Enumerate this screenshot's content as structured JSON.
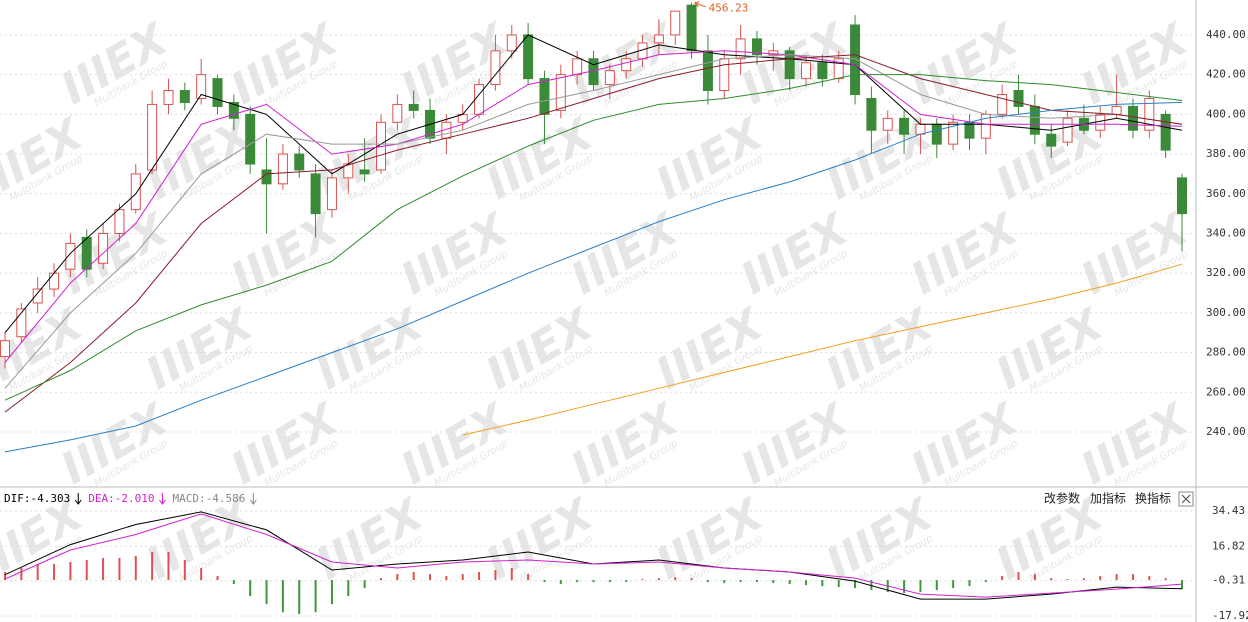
{
  "chart_data": [
    {
      "type": "candlestick",
      "yticks": [
        {
          "value": 440,
          "label": "440.00"
        },
        {
          "value": 420,
          "label": "420.00"
        },
        {
          "value": 400,
          "label": "400.00"
        },
        {
          "value": 380,
          "label": "380.00"
        },
        {
          "value": 360,
          "label": "360.00"
        },
        {
          "value": 340,
          "label": "340.00"
        },
        {
          "value": 320,
          "label": "320.00"
        },
        {
          "value": 300,
          "label": "300.00"
        },
        {
          "value": 280,
          "label": "280.00"
        },
        {
          "value": 260,
          "label": "260.00"
        },
        {
          "value": 240,
          "label": "240.00"
        }
      ],
      "ylim": [
        212.8,
        457.6
      ],
      "grid": true,
      "up_color": "#d9534f",
      "down_color": "#3a8a3a",
      "annotation": "456.23",
      "annotation_color": "#e06020",
      "open": [
        278,
        288,
        305,
        312,
        322,
        338,
        325,
        340,
        352,
        372,
        405,
        412,
        408,
        418,
        406,
        400,
        372,
        365,
        380,
        370,
        352,
        368,
        372,
        372,
        396,
        405,
        402,
        388,
        396,
        400,
        415,
        432,
        440,
        418,
        402,
        420,
        428,
        415,
        422,
        428,
        436,
        440,
        455,
        432,
        412,
        428,
        438,
        430,
        432,
        418,
        426,
        418,
        445,
        408,
        392,
        398,
        390,
        395,
        385,
        396,
        388,
        400,
        412,
        404,
        390,
        386,
        398,
        392,
        400,
        404,
        392,
        400,
        368
      ],
      "high": [
        290,
        305,
        318,
        325,
        340,
        342,
        345,
        355,
        375,
        412,
        418,
        416,
        428,
        420,
        410,
        404,
        388,
        385,
        384,
        375,
        372,
        380,
        388,
        400,
        410,
        412,
        408,
        400,
        405,
        418,
        440,
        445,
        446,
        422,
        425,
        432,
        432,
        425,
        432,
        440,
        448,
        452,
        456.23,
        440,
        432,
        445,
        442,
        436,
        434,
        430,
        430,
        432,
        450,
        414,
        402,
        402,
        398,
        398,
        400,
        400,
        402,
        415,
        420,
        410,
        395,
        402,
        405,
        404,
        420,
        408,
        412,
        402,
        370
      ],
      "low": [
        272,
        285,
        300,
        308,
        318,
        318,
        322,
        336,
        350,
        370,
        400,
        402,
        405,
        400,
        392,
        370,
        340,
        362,
        368,
        338,
        348,
        360,
        366,
        370,
        392,
        398,
        385,
        380,
        392,
        398,
        412,
        428,
        415,
        385,
        398,
        415,
        412,
        408,
        418,
        424,
        430,
        435,
        428,
        405,
        408,
        420,
        425,
        422,
        412,
        414,
        414,
        416,
        405,
        380,
        385,
        380,
        380,
        378,
        382,
        382,
        380,
        398,
        400,
        385,
        378,
        384,
        390,
        388,
        398,
        388,
        388,
        378,
        331
      ],
      "close": [
        286,
        302,
        312,
        320,
        335,
        322,
        340,
        352,
        370,
        405,
        412,
        406,
        420,
        404,
        398,
        375,
        365,
        380,
        372,
        350,
        368,
        375,
        370,
        396,
        405,
        402,
        388,
        396,
        400,
        415,
        432,
        440,
        418,
        400,
        420,
        428,
        415,
        422,
        428,
        436,
        440,
        452,
        432,
        412,
        428,
        438,
        430,
        432,
        418,
        426,
        418,
        428,
        410,
        392,
        398,
        390,
        395,
        385,
        396,
        388,
        400,
        410,
        404,
        390,
        384,
        398,
        392,
        400,
        404,
        392,
        408,
        382,
        350
      ],
      "ma_x": [
        0,
        4,
        8,
        12,
        16,
        20,
        24,
        28,
        32,
        36,
        40,
        44,
        48,
        52,
        56,
        60,
        64,
        68,
        72
      ],
      "ma": [
        {
          "color": "#000000",
          "values": [
            290,
            330,
            360,
            410,
            400,
            370,
            390,
            400,
            440,
            425,
            435,
            430,
            428,
            425,
            395,
            395,
            392,
            398,
            392
          ]
        },
        {
          "color": "#d020d0",
          "values": [
            275,
            315,
            345,
            395,
            405,
            380,
            385,
            395,
            415,
            422,
            430,
            432,
            430,
            425,
            400,
            395,
            395,
            395,
            394
          ]
        },
        {
          "color": "#999999",
          "values": [
            262,
            300,
            330,
            370,
            390,
            385,
            385,
            392,
            405,
            412,
            420,
            428,
            430,
            428,
            410,
            400,
            398,
            400,
            395
          ]
        },
        {
          "color": "#8b1a2a",
          "values": [
            250,
            275,
            305,
            345,
            370,
            372,
            382,
            390,
            398,
            408,
            418,
            425,
            428,
            430,
            418,
            410,
            402,
            400,
            395
          ]
        },
        {
          "color": "#2e8b2e",
          "values": [
            256,
            271,
            291,
            304,
            314,
            326,
            352,
            369,
            384,
            397,
            405,
            408,
            413,
            420,
            420,
            417,
            415,
            411,
            407
          ]
        },
        {
          "color": "#2a7fc8",
          "values": [
            230,
            236,
            243,
            256,
            268,
            280,
            292,
            306,
            320,
            333,
            346,
            357,
            366,
            377,
            390,
            398,
            402,
            405,
            406
          ]
        },
        {
          "color": "#f0a020",
          "values": [
            null,
            null,
            null,
            null,
            null,
            null,
            null,
            238.5,
            246,
            254,
            262,
            270,
            278,
            286,
            293,
            300,
            307,
            315,
            324.5
          ]
        }
      ]
    },
    {
      "type": "macd",
      "yticks": [
        34.43,
        16.82,
        -0.31,
        -17.92
      ],
      "ylim": [
        -20.9,
        44.9
      ],
      "grid": true,
      "buttons": [
        "改参数",
        "加指标",
        "换指标"
      ],
      "series": [
        {
          "name": "DIF:-4.303",
          "color": "#000000",
          "values": [
            2.7,
            17.7,
            27.7,
            34,
            25,
            5,
            8,
            10,
            14,
            8,
            10,
            6,
            4,
            -0.5,
            -9.5,
            -9.5,
            -7,
            -3.5,
            -4.303
          ]
        },
        {
          "name": "DEA:-2.010",
          "color": "#d020d0",
          "values": [
            0.5,
            15,
            22.7,
            33,
            22.7,
            9,
            6,
            9,
            10,
            8,
            9,
            6,
            4,
            1,
            -7,
            -8.5,
            -6.5,
            -4.5,
            -2.01
          ]
        }
      ],
      "bars": {
        "name": "MACD:-4.586",
        "color": "#888888",
        "up_color": "#e05050",
        "down_color": "#3a9a3a",
        "values": [
          4,
          6,
          8,
          8,
          9,
          10,
          11,
          11,
          12,
          14,
          14,
          10,
          6,
          2,
          -2,
          -8,
          -12,
          -16,
          -17,
          -16,
          -12,
          -8,
          -4,
          1,
          3,
          4,
          3,
          2,
          3,
          4,
          5,
          6,
          3,
          -1,
          -2,
          -1,
          -1,
          -1,
          -1,
          0.5,
          1,
          1.5,
          1,
          -1,
          -1.5,
          -1,
          -1,
          -1.5,
          -2,
          -2.5,
          -3,
          -3.5,
          -4,
          -5,
          -6,
          -6.5,
          -6,
          -5,
          -4,
          -3,
          -1,
          2,
          4,
          3,
          1,
          0.5,
          1,
          2,
          3,
          3,
          2,
          1,
          -4.586
        ]
      }
    }
  ],
  "watermark": {
    "mark": "IIIEX",
    "sub": "Multibank Group"
  }
}
